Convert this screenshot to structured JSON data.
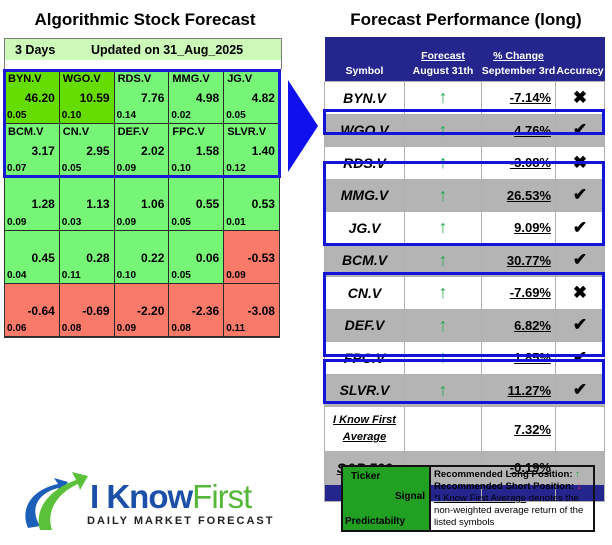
{
  "left_panel": {
    "title": "Algorithmic Stock Forecast",
    "horizon": "3 Days",
    "updated": "Updated on 31_Aug_2025",
    "grid": [
      {
        "ticker": "BYN.V",
        "signal": "46.20",
        "predictability": "0.05",
        "color": "bright"
      },
      {
        "ticker": "WGO.V",
        "signal": "10.59",
        "predictability": "0.10",
        "color": "bright"
      },
      {
        "ticker": "RDS.V",
        "signal": "7.76",
        "predictability": "0.14",
        "color": "green"
      },
      {
        "ticker": "MMG.V",
        "signal": "4.98",
        "predictability": "0.02",
        "color": "green"
      },
      {
        "ticker": "JG.V",
        "signal": "4.82",
        "predictability": "0.05",
        "color": "green"
      },
      {
        "ticker": "BCM.V",
        "signal": "3.17",
        "predictability": "0.07",
        "color": "green"
      },
      {
        "ticker": "CN.V",
        "signal": "2.95",
        "predictability": "0.05",
        "color": "green"
      },
      {
        "ticker": "DEF.V",
        "signal": "2.02",
        "predictability": "0.09",
        "color": "green"
      },
      {
        "ticker": "FPC.V",
        "signal": "1.58",
        "predictability": "0.10",
        "color": "green"
      },
      {
        "ticker": "SLVR.V",
        "signal": "1.40",
        "predictability": "0.12",
        "color": "green"
      },
      {
        "ticker": "",
        "signal": "1.28",
        "predictability": "0.09",
        "color": "green"
      },
      {
        "ticker": "",
        "signal": "1.13",
        "predictability": "0.03",
        "color": "green"
      },
      {
        "ticker": "",
        "signal": "1.06",
        "predictability": "0.09",
        "color": "green"
      },
      {
        "ticker": "",
        "signal": "0.55",
        "predictability": "0.05",
        "color": "green"
      },
      {
        "ticker": "",
        "signal": "0.53",
        "predictability": "0.01",
        "color": "green"
      },
      {
        "ticker": "",
        "signal": "0.45",
        "predictability": "0.04",
        "color": "green"
      },
      {
        "ticker": "",
        "signal": "0.28",
        "predictability": "0.11",
        "color": "green"
      },
      {
        "ticker": "",
        "signal": "0.22",
        "predictability": "0.10",
        "color": "green"
      },
      {
        "ticker": "",
        "signal": "0.06",
        "predictability": "0.05",
        "color": "green"
      },
      {
        "ticker": "",
        "signal": "-0.53",
        "predictability": "0.09",
        "color": "red"
      },
      {
        "ticker": "",
        "signal": "-0.64",
        "predictability": "0.06",
        "color": "red"
      },
      {
        "ticker": "",
        "signal": "-0.69",
        "predictability": "0.08",
        "color": "red"
      },
      {
        "ticker": "",
        "signal": "-2.20",
        "predictability": "0.09",
        "color": "red"
      },
      {
        "ticker": "",
        "signal": "-2.36",
        "predictability": "0.08",
        "color": "red"
      },
      {
        "ticker": "",
        "signal": "-3.08",
        "predictability": "0.11",
        "color": "red"
      }
    ]
  },
  "right_panel": {
    "title": "Forecast Performance (long)",
    "headers": {
      "symbol": "Symbol",
      "forecast_top": "Forecast",
      "forecast_bottom": "August 31th",
      "change_top": "% Change",
      "change_bottom": "September 3rd",
      "accuracy": "Accuracy"
    },
    "rows": [
      {
        "symbol": "BYN.V",
        "signal": "↑",
        "change": "-7.14%",
        "accuracy": "✖",
        "shade": "w"
      },
      {
        "symbol": "WGO.V",
        "signal": "↑",
        "change": "4.76%",
        "accuracy": "✔",
        "shade": "g"
      },
      {
        "symbol": "RDS.V",
        "signal": "↑",
        "change": "-3.08%",
        "accuracy": "✖",
        "shade": "w"
      },
      {
        "symbol": "MMG.V",
        "signal": "↑",
        "change": "26.53%",
        "accuracy": "✔",
        "shade": "g"
      },
      {
        "symbol": "JG.V",
        "signal": "↑",
        "change": "9.09%",
        "accuracy": "✔",
        "shade": "w"
      },
      {
        "symbol": "BCM.V",
        "signal": "↑",
        "change": "30.77%",
        "accuracy": "✔",
        "shade": "g"
      },
      {
        "symbol": "CN.V",
        "signal": "↑",
        "change": "-7.69%",
        "accuracy": "✖",
        "shade": "w"
      },
      {
        "symbol": "DEF.V",
        "signal": "↑",
        "change": "6.82%",
        "accuracy": "✔",
        "shade": "g"
      },
      {
        "symbol": "FPC.V",
        "signal": "↑",
        "change": "1.85%",
        "accuracy": "✔",
        "shade": "w"
      },
      {
        "symbol": "SLVR.V",
        "signal": "↑",
        "change": "11.27%",
        "accuracy": "✔",
        "shade": "g"
      }
    ],
    "average": {
      "label_line1": "I Know First",
      "label_line2": "Average",
      "change": "7.32%"
    },
    "benchmark": {
      "label": "S&P 500",
      "change": "-0.19%"
    }
  },
  "logo": {
    "brand_part1": "I Know",
    "brand_part2": "First",
    "tagline": "DAILY MARKET FORECAST"
  },
  "legend": {
    "ticker": "Ticker",
    "signal": "Signal",
    "predictability": "Predictabilty",
    "long": "Recommended Long Position:",
    "long_icon": "↑",
    "short": "Recommended Short Position:",
    "short_icon": "↓",
    "note_link": "*I Know First Average",
    "note_rest": " denotes the non-weighted average return of the listed symbols"
  },
  "colors": {
    "grid_green": "#76f576",
    "grid_bright_green": "#66dd00",
    "grid_red": "#fa7a6a",
    "header_navy": "#25258e",
    "highlight_blue": "#1414d8",
    "signal_up": "#22aa55",
    "signal_down": "#e03030"
  }
}
